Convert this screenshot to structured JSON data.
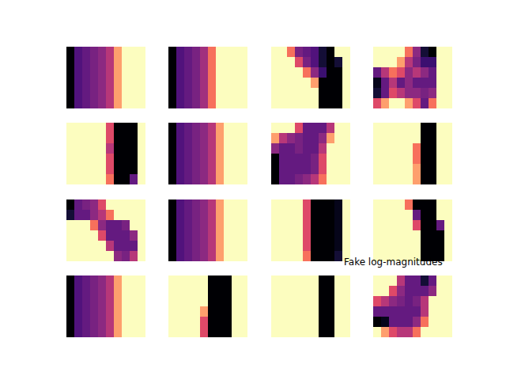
{
  "chart_data": {
    "type": "heatmap",
    "title": "Fake log-magnitudes",
    "color": "magma",
    "color_range": [
      0,
      1
    ],
    "tick_labels": false,
    "panels": [
      {
        "cells": [
          [
            0,
            0.25,
            0.3,
            0.35,
            0.4,
            0.5,
            0.8,
            1,
            1,
            1
          ],
          [
            0,
            0.25,
            0.3,
            0.35,
            0.4,
            0.5,
            0.8,
            1,
            1,
            1
          ],
          [
            0,
            0.25,
            0.3,
            0.35,
            0.4,
            0.5,
            0.8,
            1,
            1,
            1
          ],
          [
            0,
            0.25,
            0.3,
            0.35,
            0.4,
            0.5,
            0.8,
            1,
            1,
            1
          ],
          [
            0,
            0.25,
            0.3,
            0.35,
            0.4,
            0.5,
            0.8,
            1,
            1,
            1
          ],
          [
            0,
            0.25,
            0.3,
            0.35,
            0.4,
            0.5,
            0.8,
            1,
            1,
            1
          ]
        ]
      },
      {
        "cells": [
          [
            0,
            0.25,
            0.3,
            0.35,
            0.45,
            0.7,
            1,
            1,
            1,
            1
          ],
          [
            0,
            0.25,
            0.3,
            0.35,
            0.45,
            0.7,
            1,
            1,
            1,
            1
          ],
          [
            0,
            0.25,
            0.3,
            0.35,
            0.45,
            0.7,
            1,
            1,
            1,
            1
          ],
          [
            0,
            0.25,
            0.3,
            0.35,
            0.45,
            0.7,
            1,
            1,
            1,
            1
          ],
          [
            0,
            0.25,
            0.3,
            0.35,
            0.45,
            0.7,
            1,
            1,
            1,
            1
          ],
          [
            0,
            0.25,
            0.3,
            0.35,
            0.45,
            0.7,
            1,
            1,
            1,
            1
          ]
        ]
      },
      {
        "cells": [
          [
            1,
            1,
            0.7,
            0.35,
            0.3,
            0.25,
            0.1,
            0,
            1,
            1
          ],
          [
            1,
            1,
            1,
            0.6,
            0.35,
            0.25,
            0.1,
            0,
            0.1,
            1
          ],
          [
            1,
            1,
            1,
            1,
            0.7,
            0.4,
            0.2,
            0,
            0,
            1
          ],
          [
            1,
            1,
            1,
            1,
            1,
            0.8,
            0,
            0,
            0,
            1
          ],
          [
            1,
            1,
            1,
            1,
            1,
            1,
            0,
            0,
            0,
            1
          ],
          [
            1,
            1,
            1,
            1,
            1,
            1,
            0,
            0,
            0,
            1
          ]
        ]
      },
      {
        "cells": [
          [
            1,
            1,
            1,
            1,
            0.7,
            0.4,
            0.1,
            0,
            1,
            1
          ],
          [
            1,
            1,
            1,
            0.8,
            0.5,
            0.35,
            0.2,
            0.2,
            1,
            1
          ],
          [
            0.3,
            0.5,
            0.7,
            0.6,
            0.4,
            0.5,
            0.4,
            0.3,
            1,
            1
          ],
          [
            0.05,
            0.3,
            0.5,
            0.3,
            0.4,
            0.3,
            0.3,
            0.3,
            1,
            1
          ],
          [
            0.1,
            0.3,
            0.6,
            0.5,
            0.4,
            0.4,
            0.35,
            0.4,
            1,
            1
          ],
          [
            0.6,
            0.8,
            1,
            1,
            0.8,
            0.6,
            0.3,
            0.7,
            1,
            1
          ]
        ]
      },
      {
        "cells": [
          [
            1,
            1,
            1,
            1,
            1,
            0.6,
            0,
            0,
            0,
            1
          ],
          [
            1,
            1,
            1,
            1,
            1,
            0.6,
            0,
            0,
            0,
            1
          ],
          [
            1,
            1,
            1,
            1,
            1,
            0.5,
            0,
            0,
            0,
            1
          ],
          [
            1,
            1,
            1,
            1,
            1,
            0.6,
            0,
            0,
            0,
            1
          ],
          [
            1,
            1,
            1,
            1,
            1,
            0.6,
            0,
            0,
            0,
            1
          ],
          [
            1,
            1,
            1,
            1,
            1,
            0.7,
            0,
            0,
            0.3,
            1
          ]
        ]
      },
      {
        "cells": [
          [
            0,
            0.25,
            0.3,
            0.35,
            0.4,
            0.5,
            0.8,
            1,
            1,
            1
          ],
          [
            0,
            0.25,
            0.3,
            0.35,
            0.4,
            0.5,
            0.8,
            1,
            1,
            1
          ],
          [
            0,
            0.25,
            0.3,
            0.35,
            0.4,
            0.5,
            0.8,
            1,
            1,
            1
          ],
          [
            0,
            0.25,
            0.3,
            0.35,
            0.4,
            0.5,
            0.8,
            1,
            1,
            1
          ],
          [
            0,
            0.25,
            0.3,
            0.35,
            0.4,
            0.5,
            0.8,
            1,
            1,
            1
          ],
          [
            0,
            0.25,
            0.3,
            0.35,
            0.4,
            0.5,
            0.8,
            1,
            1,
            1
          ]
        ]
      },
      {
        "cells": [
          [
            1,
            1,
            1,
            0.6,
            0.3,
            0.3,
            0.3,
            0.5,
            1,
            1
          ],
          [
            0.8,
            0.5,
            0.4,
            0.35,
            0.3,
            0.3,
            0.4,
            0.8,
            1,
            1
          ],
          [
            0.4,
            0.3,
            0.3,
            0.35,
            0.3,
            0.3,
            0.5,
            1,
            1,
            1
          ],
          [
            0,
            0.3,
            0.3,
            0.3,
            0.3,
            0.35,
            0.6,
            1,
            1,
            1
          ],
          [
            0,
            0.3,
            0.3,
            0.3,
            0.3,
            0.35,
            0.6,
            1,
            1,
            1
          ],
          [
            0,
            0.3,
            0.3,
            0.35,
            0.4,
            0.5,
            0.7,
            1,
            1,
            1
          ]
        ]
      },
      {
        "cells": [
          [
            1,
            1,
            1,
            1,
            1,
            1,
            0,
            0,
            1,
            1
          ],
          [
            1,
            1,
            1,
            1,
            1,
            1,
            0,
            0,
            1,
            1
          ],
          [
            1,
            1,
            1,
            1,
            1,
            0.7,
            0,
            0,
            1,
            1
          ],
          [
            1,
            1,
            1,
            1,
            1,
            0.7,
            0,
            0,
            1,
            1
          ],
          [
            1,
            1,
            1,
            1,
            1,
            0.8,
            0,
            0,
            1,
            1
          ],
          [
            1,
            1,
            1,
            1,
            1,
            0.8,
            0,
            0,
            1,
            1
          ]
        ]
      },
      {
        "cells": [
          [
            0,
            0.3,
            0.35,
            0.4,
            0.6,
            1,
            1,
            1,
            1,
            1
          ],
          [
            0.1,
            0.3,
            0.3,
            0.4,
            0.5,
            0.7,
            1,
            1,
            1,
            1
          ],
          [
            1,
            1,
            1,
            0.7,
            0.4,
            0.3,
            0.3,
            0.35,
            1,
            1
          ],
          [
            1,
            1,
            1,
            1,
            0.6,
            0.3,
            0.3,
            0.3,
            0.4,
            1
          ],
          [
            1,
            1,
            1,
            1,
            1,
            0.5,
            0.3,
            0.3,
            0.3,
            1
          ],
          [
            1,
            1,
            1,
            1,
            1,
            1,
            0.4,
            0.35,
            0.5,
            1
          ]
        ]
      },
      {
        "cells": [
          [
            0,
            0.25,
            0.3,
            0.35,
            0.4,
            0.5,
            0.8,
            1,
            1,
            1
          ],
          [
            0,
            0.25,
            0.3,
            0.35,
            0.4,
            0.5,
            0.8,
            1,
            1,
            1
          ],
          [
            0,
            0.25,
            0.3,
            0.35,
            0.4,
            0.5,
            0.8,
            1,
            1,
            1
          ],
          [
            0,
            0.25,
            0.3,
            0.35,
            0.4,
            0.5,
            0.8,
            1,
            1,
            1
          ],
          [
            0,
            0.25,
            0.3,
            0.35,
            0.4,
            0.5,
            0.8,
            1,
            1,
            1
          ],
          [
            0,
            0.25,
            0.3,
            0.35,
            0.4,
            0.5,
            0.8,
            1,
            1,
            1
          ]
        ]
      },
      {
        "cells": [
          [
            1,
            1,
            1,
            1,
            0.6,
            0,
            0,
            0,
            0.05,
            1
          ],
          [
            1,
            1,
            1,
            1,
            0.6,
            0,
            0,
            0,
            0.05,
            1
          ],
          [
            1,
            1,
            1,
            1,
            0.6,
            0,
            0,
            0,
            0.05,
            1
          ],
          [
            1,
            1,
            1,
            1,
            0.6,
            0,
            0,
            0,
            0.05,
            1
          ],
          [
            1,
            1,
            1,
            1,
            0.6,
            0,
            0,
            0,
            0.05,
            1
          ],
          [
            1,
            1,
            1,
            1,
            0.7,
            0,
            0,
            0,
            0.1,
            1
          ]
        ]
      },
      {
        "cells": [
          [
            1,
            1,
            1,
            1,
            0.7,
            0,
            0,
            0,
            1,
            1
          ],
          [
            1,
            1,
            1,
            1,
            1,
            0.3,
            0,
            0,
            1,
            1
          ],
          [
            1,
            1,
            1,
            1,
            1,
            0.6,
            0,
            0,
            0.3,
            1
          ],
          [
            1,
            1,
            1,
            1,
            1,
            1,
            0,
            0,
            0,
            1
          ],
          [
            1,
            1,
            1,
            1,
            1,
            1,
            0,
            0,
            0,
            1
          ],
          [
            1,
            1,
            1,
            1,
            1,
            1,
            0,
            0,
            0,
            1
          ]
        ]
      },
      {
        "cells": [
          [
            0,
            0.25,
            0.3,
            0.35,
            0.4,
            0.5,
            0.8,
            1,
            1,
            1
          ],
          [
            0,
            0.25,
            0.3,
            0.35,
            0.4,
            0.5,
            0.8,
            1,
            1,
            1
          ],
          [
            0,
            0.25,
            0.3,
            0.35,
            0.4,
            0.5,
            0.8,
            1,
            1,
            1
          ],
          [
            0,
            0.25,
            0.3,
            0.35,
            0.4,
            0.5,
            0.8,
            1,
            1,
            1
          ],
          [
            0,
            0.25,
            0.3,
            0.35,
            0.4,
            0.5,
            0.8,
            1,
            1,
            1
          ],
          [
            0,
            0.25,
            0.3,
            0.35,
            0.4,
            0.5,
            0.8,
            1,
            1,
            1
          ]
        ]
      },
      {
        "cells": [
          [
            1,
            1,
            1,
            1,
            1,
            0,
            0,
            0,
            1,
            1
          ],
          [
            1,
            1,
            1,
            1,
            1,
            0,
            0,
            0,
            1,
            1
          ],
          [
            1,
            1,
            1,
            1,
            1,
            0,
            0,
            0,
            1,
            1
          ],
          [
            1,
            1,
            1,
            1,
            0.8,
            0,
            0,
            0,
            1,
            1
          ],
          [
            1,
            1,
            1,
            1,
            0.6,
            0,
            0,
            0,
            1,
            1
          ],
          [
            1,
            1,
            1,
            1,
            0.6,
            0,
            0,
            0,
            1,
            1
          ]
        ]
      },
      {
        "cells": [
          [
            1,
            1,
            1,
            1,
            1,
            1,
            0,
            0,
            1,
            1
          ],
          [
            1,
            1,
            1,
            1,
            1,
            1,
            0,
            0,
            1,
            1
          ],
          [
            1,
            1,
            1,
            1,
            1,
            1,
            0,
            0,
            1,
            1
          ],
          [
            1,
            1,
            1,
            1,
            1,
            1,
            0,
            0,
            1,
            1
          ],
          [
            1,
            1,
            1,
            1,
            1,
            1,
            0,
            0,
            1,
            1
          ],
          [
            1,
            1,
            1,
            1,
            1,
            1,
            0,
            0,
            1,
            1
          ]
        ]
      },
      {
        "cells": [
          [
            1,
            1,
            1,
            0.5,
            0.3,
            0.3,
            0.1,
            0.3,
            1,
            1
          ],
          [
            1,
            1,
            0.6,
            0.4,
            0.3,
            0.3,
            0.3,
            0.4,
            1,
            1
          ],
          [
            0.6,
            0.5,
            0.4,
            0.35,
            0.3,
            0.35,
            0.5,
            1,
            1,
            1
          ],
          [
            0.3,
            0.3,
            0.3,
            0.3,
            0.3,
            0.3,
            0.5,
            1,
            1,
            1
          ],
          [
            0,
            0.05,
            0.3,
            0.3,
            0.3,
            0.4,
            0.7,
            1,
            1,
            1
          ],
          [
            1,
            0.8,
            0.6,
            0.5,
            0.5,
            0.7,
            1,
            1,
            1,
            1
          ]
        ]
      }
    ]
  }
}
